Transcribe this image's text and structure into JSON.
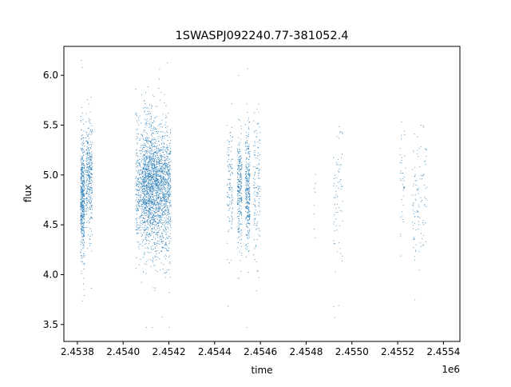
{
  "chart_data": {
    "type": "scatter",
    "title": "1SWASPJ092240.77-381052.4",
    "xlabel": "time",
    "ylabel": "flux",
    "x_offset_label": "1e6",
    "xlim": [
      2453741,
      2455472
    ],
    "ylim": [
      3.33,
      6.29
    ],
    "x_ticks": [
      2453800,
      2454000,
      2454200,
      2454400,
      2454600,
      2454800,
      2455000,
      2455200,
      2455400
    ],
    "x_tick_labels": [
      "2.4538",
      "2.4540",
      "2.4542",
      "2.4544",
      "2.4546",
      "2.4548",
      "2.4550",
      "2.4552",
      "2.4554"
    ],
    "y_ticks": [
      3.5,
      4.0,
      4.5,
      5.0,
      5.5,
      6.0
    ],
    "y_tick_labels": [
      "3.5",
      "4.0",
      "4.5",
      "5.0",
      "5.5",
      "6.0"
    ],
    "grid": false,
    "marker_color": "#1f77b4",
    "observing_seasons": [
      {
        "time_range": [
          2453814,
          2453832
        ],
        "flux_mean": 4.78,
        "flux_sd": 0.28,
        "n": 500
      },
      {
        "time_range": [
          2453838,
          2453866
        ],
        "flux_mean": 5.0,
        "flux_sd": 0.27,
        "n": 350
      },
      {
        "time_range": [
          2454055,
          2454085
        ],
        "flux_mean": 4.9,
        "flux_sd": 0.3,
        "n": 260
      },
      {
        "time_range": [
          2454085,
          2454150
        ],
        "flux_mean": 4.88,
        "flux_sd": 0.3,
        "n": 1300
      },
      {
        "time_range": [
          2454150,
          2454210
        ],
        "flux_mean": 4.85,
        "flux_sd": 0.3,
        "n": 900
      },
      {
        "time_range": [
          2454455,
          2454480
        ],
        "flux_mean": 4.9,
        "flux_sd": 0.3,
        "n": 120
      },
      {
        "time_range": [
          2454500,
          2454520
        ],
        "flux_mean": 4.85,
        "flux_sd": 0.3,
        "n": 260
      },
      {
        "time_range": [
          2454535,
          2454555
        ],
        "flux_mean": 4.9,
        "flux_sd": 0.3,
        "n": 320
      },
      {
        "time_range": [
          2454570,
          2454600
        ],
        "flux_mean": 4.9,
        "flux_sd": 0.35,
        "n": 140
      },
      {
        "time_range": [
          2454835,
          2454842
        ],
        "flux_mean": 4.75,
        "flux_sd": 0.25,
        "n": 8
      },
      {
        "time_range": [
          2454920,
          2454960
        ],
        "flux_mean": 4.75,
        "flux_sd": 0.35,
        "n": 70
      },
      {
        "time_range": [
          2455210,
          2455235
        ],
        "flux_mean": 4.85,
        "flux_sd": 0.35,
        "n": 40
      },
      {
        "time_range": [
          2455265,
          2455330
        ],
        "flux_mean": 4.75,
        "flux_sd": 0.35,
        "n": 110
      }
    ]
  }
}
